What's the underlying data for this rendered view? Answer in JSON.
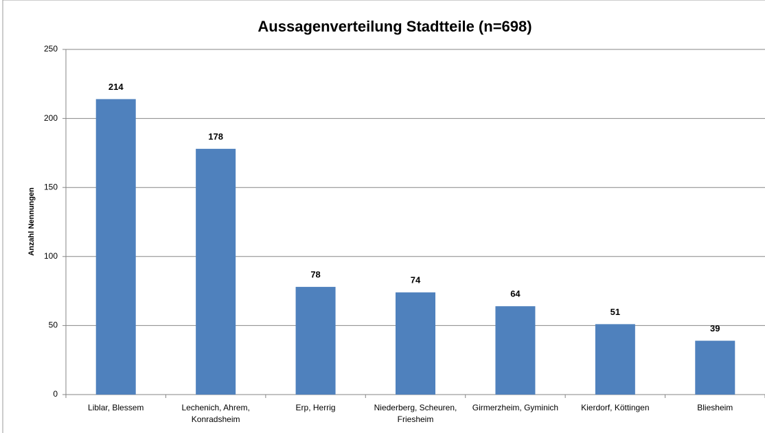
{
  "chart_data": {
    "type": "bar",
    "title": "Aussagenverteilung Stadtteile (n=698)",
    "y_label": "Anzahl Nennungen",
    "categories": [
      "Liblar, Blessem",
      "Lechenich, Ahrem, Konradsheim",
      "Erp, Herrig",
      "Niederberg, Scheuren, Friesheim",
      "Girmerzheim, Gyminich",
      "Kierdorf, Köttingen",
      "Bliesheim"
    ],
    "values": [
      214,
      178,
      78,
      74,
      64,
      51,
      39
    ],
    "color": "#4f81bd",
    "ylim": [
      0,
      250
    ],
    "yticks": [
      0,
      50,
      100,
      150,
      200,
      250
    ],
    "grid": true
  }
}
